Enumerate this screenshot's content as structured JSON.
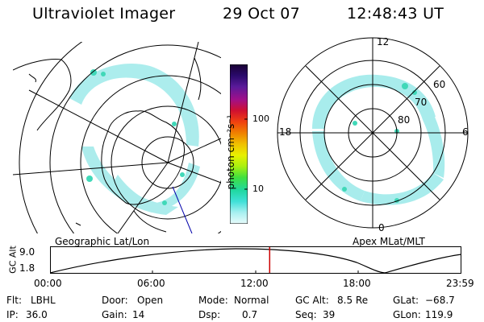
{
  "header": {
    "instrument": "Ultraviolet Imager",
    "date": "29 Oct 07",
    "time": "12:48:43 UT"
  },
  "left_panel": {
    "caption": "Geographic Lat/Lon"
  },
  "right_panel": {
    "caption": "Apex MLat/MLT",
    "mlt_labels": [
      "12",
      "18",
      "6",
      "0"
    ],
    "mlat_labels": [
      "60",
      "70",
      "80"
    ]
  },
  "colorbar": {
    "unit_label": "photon cm⁻²s⁻¹",
    "ticks": [
      "100",
      "10"
    ],
    "scale": "log",
    "colors": [
      "#1a0033",
      "#2a0a6b",
      "#5a1a9a",
      "#a0108a",
      "#d01030",
      "#f04010",
      "#f08000",
      "#f0c000",
      "#e8f000",
      "#a8f010",
      "#40e040",
      "#20d8a0",
      "#40e0d8",
      "#a8f0f0",
      "#e8fbfb"
    ]
  },
  "altitude_plot": {
    "ylabel": "GC Alt",
    "y_max_label": "9.0",
    "y_min_label": "1.8",
    "x_labels": [
      "00:00",
      "06:00",
      "12:00",
      "18:00",
      "23:59"
    ],
    "current_time_fraction": 0.534,
    "current_marker_color": "#cc0000"
  },
  "status": {
    "flt_label": "Flt:",
    "flt_value": "LBHL",
    "door_label": "Door:",
    "door_value": "Open",
    "mode_label": "Mode:",
    "mode_value": "Normal",
    "gcalt_label": "GC Alt:",
    "gcalt_value": "8.5 Re",
    "glat_label": "GLat:",
    "glat_value": "−68.7",
    "ip_label": "IP:",
    "ip_value": "36.0",
    "gain_label": "Gain:",
    "gain_value": "14",
    "dsp_label": "Dsp:",
    "dsp_value": "0.7",
    "seq_label": "Seq:",
    "seq_value": "39",
    "glon_label": "GLon:",
    "glon_value": "119.9"
  }
}
